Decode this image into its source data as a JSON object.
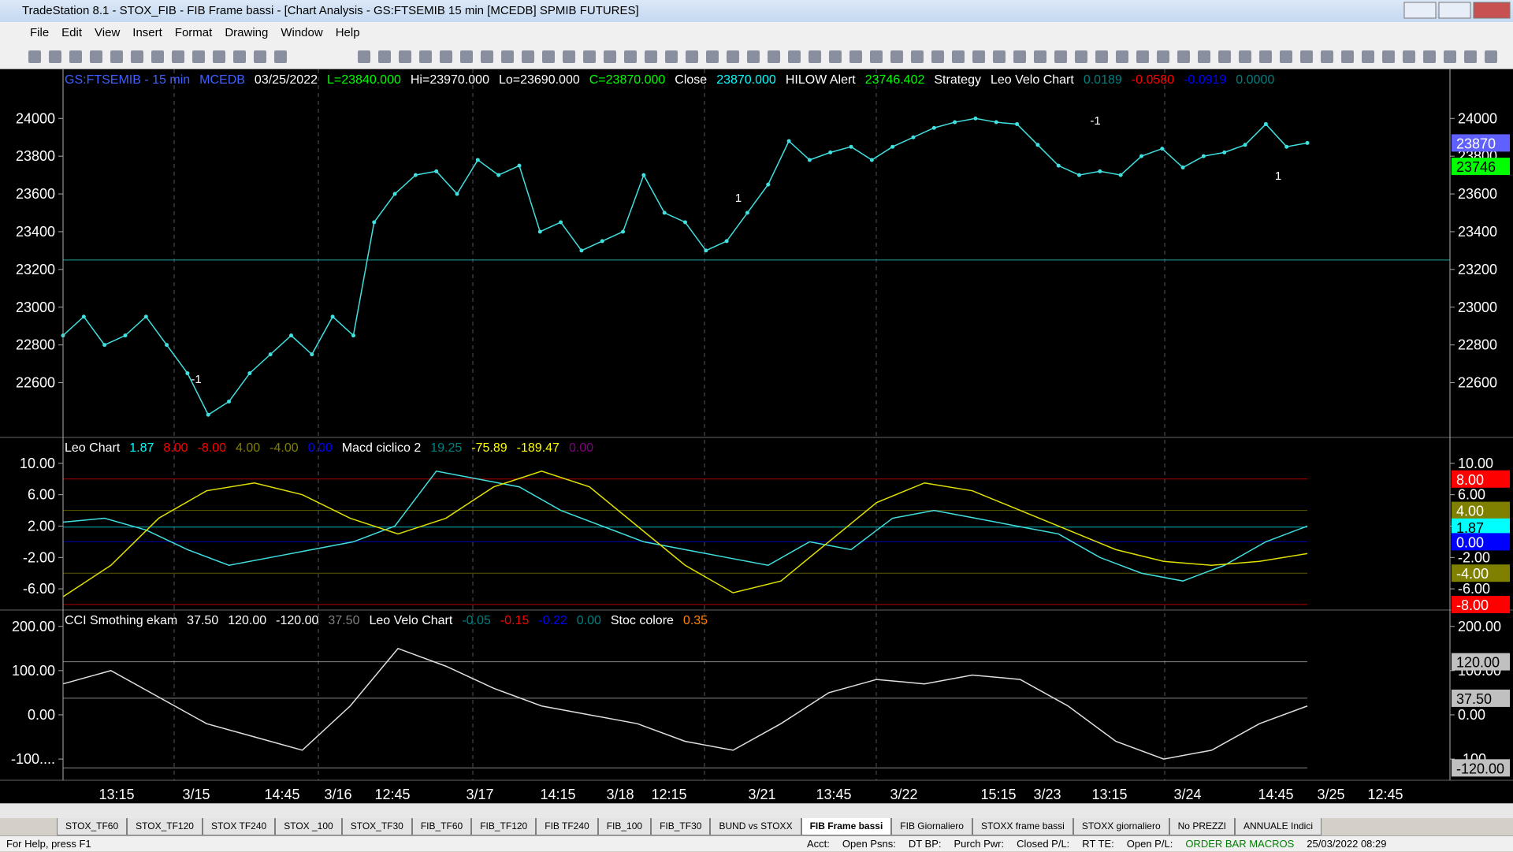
{
  "window": {
    "title": "TradeStation 8.1 - STOX_FIB - FIB Frame bassi - [Chart Analysis - GS:FTSEMIB 15 min  [MCEDB] SPMIB FUTURES]",
    "menu": [
      "File",
      "Edit",
      "View",
      "Insert",
      "Format",
      "Drawing",
      "Window",
      "Help"
    ]
  },
  "chart_data": [
    {
      "type": "scatter-line",
      "name": "price",
      "header": [
        {
          "text": "GS:FTSEMIB - 15 min",
          "color": "#4060ff"
        },
        {
          "text": "MCEDB",
          "color": "#4060ff"
        },
        {
          "text": "03/25/2022",
          "color": "#ffffff"
        },
        {
          "text": "L=23840.000",
          "color": "#00ff00"
        },
        {
          "text": "Hi=23970.000",
          "color": "#ffffff"
        },
        {
          "text": "Lo=23690.000",
          "color": "#ffffff"
        },
        {
          "text": "C=23870.000",
          "color": "#00ff00"
        },
        {
          "text": "Close",
          "color": "#ffffff"
        },
        {
          "text": "23870.000",
          "color": "#00ffff"
        },
        {
          "text": "HILOW Alert",
          "color": "#ffffff"
        },
        {
          "text": "23746.402",
          "color": "#00ff00"
        },
        {
          "text": "Strategy",
          "color": "#ffffff"
        },
        {
          "text": "Leo Velo Chart",
          "color": "#ffffff"
        },
        {
          "text": "0.0189",
          "color": "#008080"
        },
        {
          "text": "-0.0580",
          "color": "#ff0000"
        },
        {
          "text": "-0.0919",
          "color": "#0000ff"
        },
        {
          "text": "0.0000",
          "color": "#008080"
        }
      ],
      "series": [
        {
          "name": "Close",
          "color": "#40e0e0",
          "values": [
            22850,
            22950,
            22800,
            22850,
            22950,
            22800,
            22650,
            22430,
            22500,
            22650,
            22750,
            22850,
            22750,
            22950,
            22850,
            23450,
            23600,
            23700,
            23720,
            23600,
            23780,
            23700,
            23750,
            23400,
            23450,
            23300,
            23350,
            23400,
            23700,
            23500,
            23450,
            23300,
            23350,
            23500,
            23650,
            23880,
            23780,
            23820,
            23850,
            23780,
            23850,
            23900,
            23950,
            23980,
            24000,
            23980,
            23970,
            23860,
            23750,
            23700,
            23720,
            23700,
            23800,
            23840,
            23740,
            23800,
            23820,
            23860,
            23970,
            23850,
            23870
          ]
        }
      ],
      "hline": 23250,
      "ylim": [
        22310,
        24260
      ],
      "yticks": [
        24000,
        23800,
        23600,
        23400,
        23200,
        23000,
        22800,
        22600
      ],
      "badges": [
        {
          "value": 23870,
          "label": "23870",
          "color": "#6060ff"
        },
        {
          "value": 23746,
          "label": "23746",
          "color": "#00ff00"
        }
      ],
      "annotations": [
        "-1",
        "1",
        "-1",
        "1"
      ]
    },
    {
      "type": "line",
      "name": "macd",
      "header": [
        {
          "text": "Leo Chart",
          "color": "#ffffff"
        },
        {
          "text": "1.87",
          "color": "#00ffff"
        },
        {
          "text": "8.00",
          "color": "#ff0000"
        },
        {
          "text": "-8.00",
          "color": "#ff0000"
        },
        {
          "text": "4.00",
          "color": "#808000"
        },
        {
          "text": "-4.00",
          "color": "#808000"
        },
        {
          "text": "0.00",
          "color": "#0000ff"
        },
        {
          "text": "Macd ciclico 2",
          "color": "#ffffff"
        },
        {
          "text": "19.25",
          "color": "#008080"
        },
        {
          "text": "-75.89",
          "color": "#ffff00"
        },
        {
          "text": "-189.47",
          "color": "#ffff00"
        },
        {
          "text": "0.00",
          "color": "#800080"
        }
      ],
      "series": [
        {
          "name": "Leo Chart",
          "color": "#40e0e0",
          "values": [
            2.5,
            3,
            1.5,
            -1,
            -3,
            -2,
            -1,
            0,
            2,
            9,
            8,
            7,
            4,
            2,
            0,
            -1,
            -2,
            -3,
            0,
            -1,
            3,
            4,
            3,
            2,
            1,
            -2,
            -4,
            -5,
            -3,
            0,
            2
          ]
        },
        {
          "name": "Macd ciclico 2",
          "color": "#e0e000",
          "values": [
            -7,
            -3,
            3,
            6.5,
            7.5,
            6,
            3,
            1,
            3,
            7,
            9,
            7,
            2,
            -3,
            -6.5,
            -5,
            0,
            5,
            7.5,
            6.5,
            4,
            1.5,
            -1,
            -2.5,
            -3,
            -2.5,
            -1.5
          ]
        }
      ],
      "ylim": [
        -8.7,
        13.3
      ],
      "yticks": [
        {
          "value": 10,
          "label": "10.00"
        },
        {
          "value": 6,
          "label": "6.00"
        },
        {
          "value": 2,
          "label": "2.00"
        },
        {
          "value": -2,
          "label": "-2.00"
        },
        {
          "value": -6,
          "label": "-6.00"
        }
      ],
      "badges": [
        {
          "value": 8,
          "label": "8.00",
          "color": "#ff0000"
        },
        {
          "value": 4,
          "label": "4.00",
          "color": "#808000"
        },
        {
          "value": 1.87,
          "label": "1.87",
          "color": "#00ffff"
        },
        {
          "value": 0,
          "label": "0.00",
          "color": "#0000ff"
        },
        {
          "value": -4,
          "label": "-4.00",
          "color": "#808000"
        },
        {
          "value": -8,
          "label": "-8.00",
          "color": "#ff0000"
        }
      ]
    },
    {
      "type": "line",
      "name": "cci",
      "header": [
        {
          "text": "CCI Smothing ekam",
          "color": "#ffffff"
        },
        {
          "text": "37.50",
          "color": "#ffffff"
        },
        {
          "text": "120.00",
          "color": "#ffffff"
        },
        {
          "text": "-120.00",
          "color": "#ffffff"
        },
        {
          "text": "37.50",
          "color": "#808080"
        },
        {
          "text": "Leo Velo Chart",
          "color": "#ffffff"
        },
        {
          "text": "-0.05",
          "color": "#008080"
        },
        {
          "text": "-0.15",
          "color": "#ff0000"
        },
        {
          "text": "-0.22",
          "color": "#0000ff"
        },
        {
          "text": "0.00",
          "color": "#008080"
        },
        {
          "text": "Stoc colore",
          "color": "#ffffff"
        },
        {
          "text": "0.35",
          "color": "#ff8000"
        }
      ],
      "series": [
        {
          "name": "CCI Smothing ekam",
          "color": "#e0e0e0",
          "values": [
            70,
            100,
            40,
            -20,
            -50,
            -80,
            20,
            150,
            110,
            60,
            20,
            0,
            -20,
            -60,
            -80,
            -20,
            50,
            80,
            70,
            90,
            80,
            20,
            -60,
            -100,
            -80,
            -20,
            20
          ]
        }
      ],
      "ylim": [
        -148,
        237
      ],
      "yticks": [
        {
          "value": 200,
          "label": "200.00"
        },
        {
          "value": 100,
          "label": "100.00"
        },
        {
          "value": 0,
          "label": "0.00"
        },
        {
          "value": -100,
          "label": "-100...."
        }
      ],
      "badges": [
        {
          "value": 120,
          "label": "120.00",
          "color": "#c0c0c0"
        },
        {
          "value": 37.5,
          "label": "37.50",
          "color": "#c0c0c0"
        },
        {
          "value": -120,
          "label": "-120.00",
          "color": "#c0c0c0"
        }
      ]
    }
  ],
  "x_axis": [
    "13:15",
    "3/15",
    "14:45",
    "3/16",
    "12:45",
    "3/17",
    "14:15",
    "3/18",
    "12:15",
    "3/21",
    "13:45",
    "3/22",
    "15:15",
    "3/23",
    "13:15",
    "3/24",
    "14:45",
    "3/25",
    "12:45"
  ],
  "tabs": {
    "items": [
      "STOX_TF60",
      "STOX_TF120",
      "STOX TF240",
      "STOX _100",
      "STOX_TF30",
      "FIB_TF60",
      "FIB_TF120",
      "FIB TF240",
      "FIB_100",
      "FIB_TF30",
      "BUND vs STOXX",
      "FIB Frame bassi",
      "FIB Giornaliero",
      "STOXX frame bassi",
      "STOXX giornaliero",
      "No PREZZI",
      "ANNUALE Indici"
    ],
    "active": 11
  },
  "status": {
    "help": "For Help, press F1",
    "fields": [
      "Acct:",
      "Open Psns:",
      "DT BP:",
      "Purch Pwr:",
      "Closed P/L:",
      "RT TE:",
      "Open P/L:"
    ],
    "macros": "ORDER BAR MACROS",
    "clock": "25/03/2022 08:29"
  }
}
